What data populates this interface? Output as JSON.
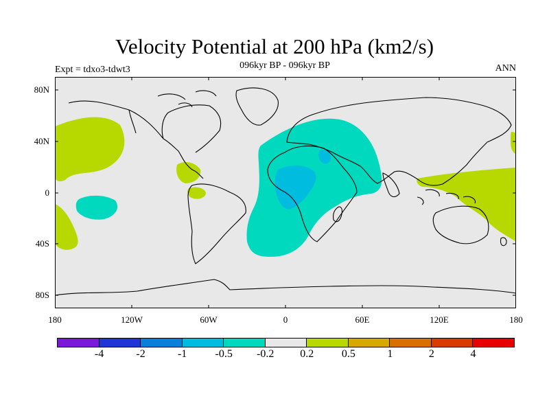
{
  "title": "Velocity Potential at 200 hPa (km2/s)",
  "subtitle": "096kyr BP - 096kyr BP",
  "left_label": "Expt = tdxo3-tdwt3",
  "right_label": "ANN",
  "y_ticks": [
    "80N",
    "40N",
    "0",
    "40S",
    "80S"
  ],
  "x_ticks": [
    "180",
    "120W",
    "60W",
    "0",
    "60E",
    "120E",
    "180"
  ],
  "colorbar": {
    "colors": [
      "#7a1ad8",
      "#2035d6",
      "#0a7fd9",
      "#00bde0",
      "#00d9bd",
      "#e8e8e8",
      "#b8d900",
      "#d9a800",
      "#d96f00",
      "#d93a00",
      "#e80000"
    ],
    "labels": [
      "-4",
      "-2",
      "-1",
      "-0.5",
      "-0.2",
      "0.2",
      "0.5",
      "1",
      "2",
      "4"
    ]
  },
  "colors": {
    "background": "#e8e8e8",
    "positive_0_2_0_5": "#b8d900",
    "negative_0_2_0_5": "#00d9bd",
    "negative_0_5_1": "#00bde0"
  }
}
